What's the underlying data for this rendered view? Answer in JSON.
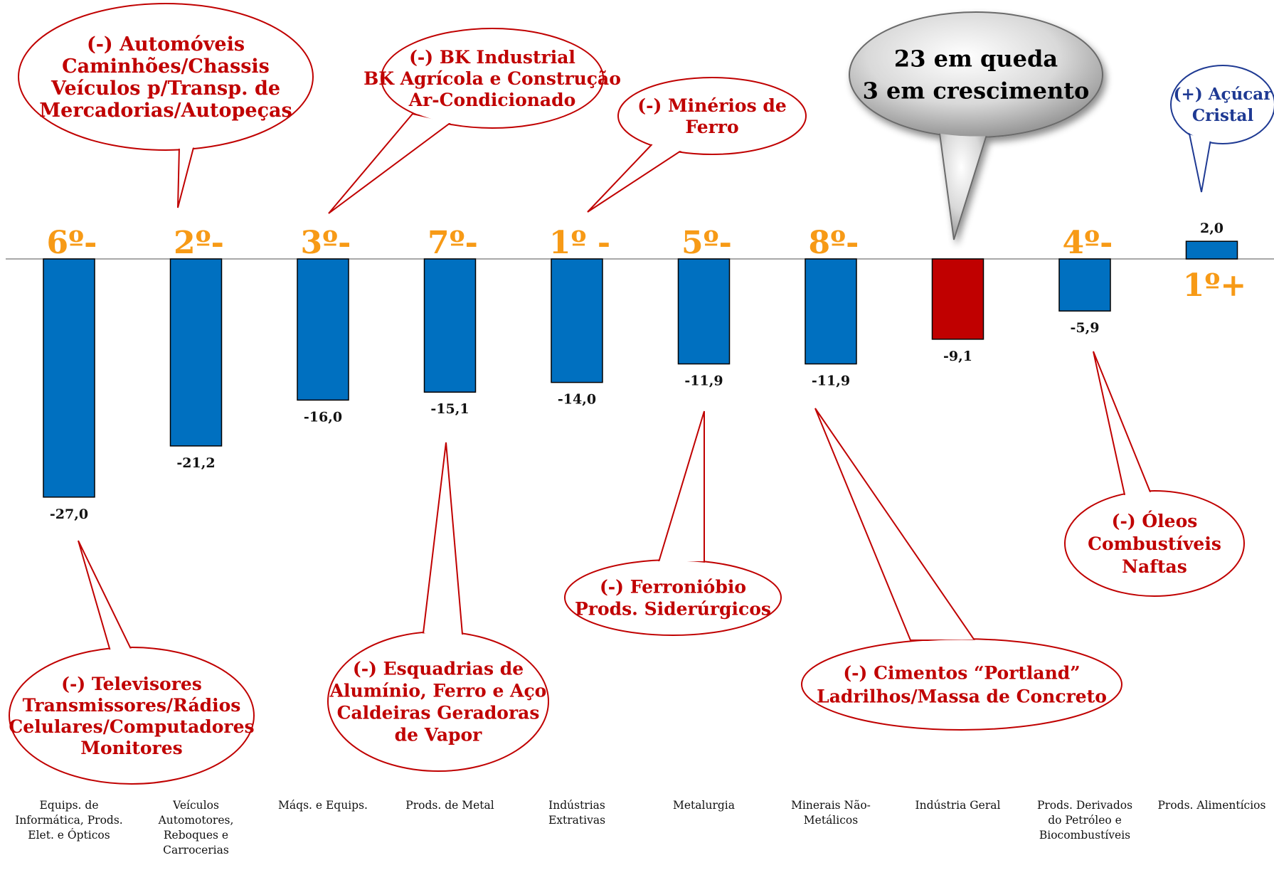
{
  "chart_data": {
    "type": "bar",
    "categories": [
      "Equips. de Informática, Prods. Elet. e Ópticos",
      "Veículos Automotores, Reboques e Carrocerias",
      "Máqs. e Equips.",
      "Prods. de Metal",
      "Indústrias Extrativas",
      "Metalurgia",
      "Minerais Não-Metálicos",
      "Indústria Geral",
      "Prods. Derivados do Petróleo e Biocombustíveis",
      "Prods. Alimentícios"
    ],
    "category_lines": [
      [
        "Equips. de",
        "Informática, Prods.",
        "Elet. e Ópticos"
      ],
      [
        "Veículos",
        "Automotores,",
        "Reboques e",
        "Carrocerias"
      ],
      [
        "Máqs. e Equips."
      ],
      [
        "Prods. de Metal"
      ],
      [
        "Indústrias",
        "Extrativas"
      ],
      [
        "Metalurgia"
      ],
      [
        "Minerais Não-",
        "Metálicos"
      ],
      [
        "Indústria Geral"
      ],
      [
        "Prods. Derivados",
        "do Petróleo e",
        "Biocombustíveis"
      ],
      [
        "Prods. Alimentícios"
      ]
    ],
    "values": [
      -27.0,
      -21.2,
      -16.0,
      -15.1,
      -14.0,
      -11.9,
      -11.9,
      -9.1,
      -5.9,
      2.0
    ],
    "value_labels": [
      "-27,0",
      "-21,2",
      "-16,0",
      "-15,1",
      "-14,0",
      "-11,9",
      "-11,9",
      "-9,1",
      "-5,9",
      "2,0"
    ],
    "ranks": [
      "6º-",
      "2º-",
      "3º-",
      "7º-",
      "1º -",
      "5º-",
      "8º-",
      "",
      "4º-",
      "1º+"
    ],
    "colors": [
      "#0070c0",
      "#0070c0",
      "#0070c0",
      "#0070c0",
      "#0070c0",
      "#0070c0",
      "#0070c0",
      "#c00000",
      "#0070c0",
      "#0070c0"
    ],
    "rank_color": "#f79a16",
    "ylim": [
      -27.0,
      2.0
    ],
    "grid": false,
    "annotations": [
      {
        "lines": [
          "(-) Automóveis",
          "Caminhões/Chassis",
          "Veículos p/Transp. de",
          "Mercadorias/Autopeças"
        ],
        "color": "#c00000"
      },
      {
        "lines": [
          "(-) BK Industrial",
          "BK Agrícola e Construção",
          "Ar-Condicionado"
        ],
        "color": "#c00000"
      },
      {
        "lines": [
          "(-) Minérios de",
          "Ferro"
        ],
        "color": "#c00000"
      },
      {
        "lines": [
          "23 em queda",
          "3 em crescimento"
        ],
        "color": "#000000"
      },
      {
        "lines": [
          "(+) Açúcar",
          "Cristal"
        ],
        "color": "#1f3a93"
      },
      {
        "lines": [
          "(-) Televisores",
          "Transmissores/Rádios",
          "Celulares/Computadores",
          "Monitores"
        ],
        "color": "#c00000"
      },
      {
        "lines": [
          "(-) Esquadrias de",
          "Alumínio, Ferro e Aço",
          "Caldeiras Geradoras",
          "de Vapor"
        ],
        "color": "#c00000"
      },
      {
        "lines": [
          "(-) Ferronióbio",
          "Prods. Siderúrgicos"
        ],
        "color": "#c00000"
      },
      {
        "lines": [
          "(-) Cimentos “Portland”",
          "Ladrilhos/Massa de Concreto"
        ],
        "color": "#c00000"
      },
      {
        "lines": [
          "(-) Óleos",
          "Combustíveis",
          "Naftas"
        ],
        "color": "#c00000"
      }
    ]
  }
}
